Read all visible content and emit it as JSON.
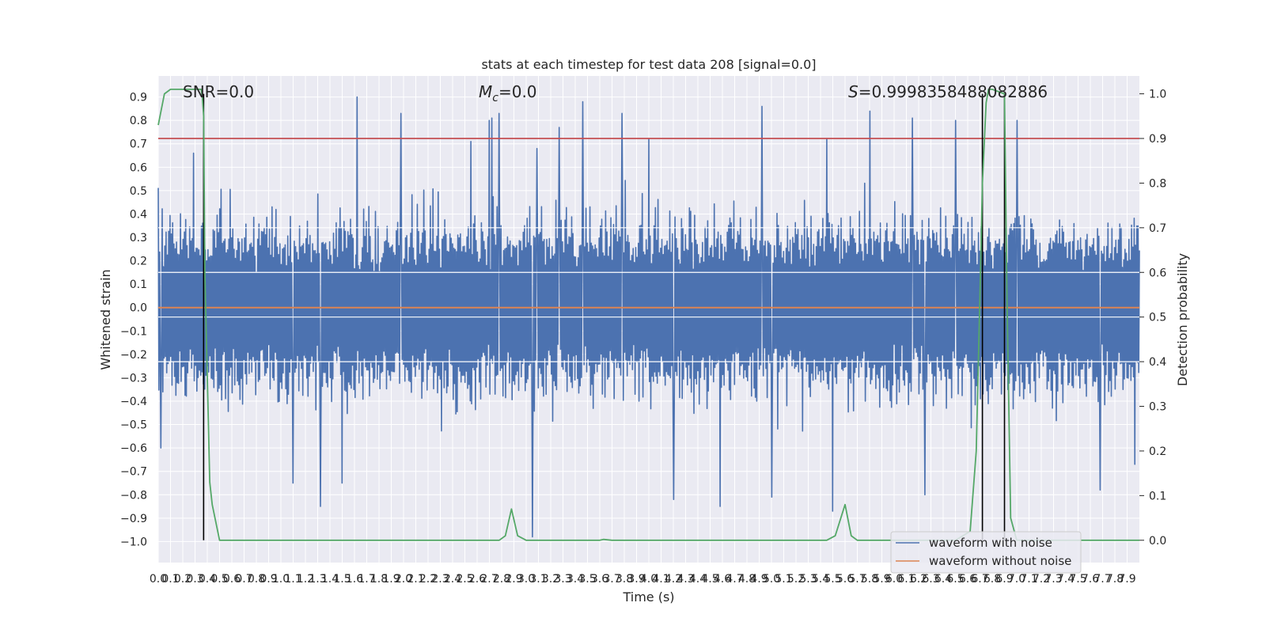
{
  "chart_data": {
    "type": "line",
    "title": "stats at each timestep for test data 208 [signal=0.0]",
    "xlabel": "Time (s)",
    "ylabel_left": "Whitened strain",
    "ylabel_right": "Detection probability",
    "xlim": [
      0,
      8
    ],
    "ylim_left": [
      -1.09,
      0.99
    ],
    "ylim_right": [
      -0.05,
      1.04
    ],
    "grid": true,
    "legend_position": "lower-right",
    "x_ticks": [
      "0.0",
      "0.1",
      "0.2",
      "0.3",
      "0.4",
      "0.5",
      "0.6",
      "0.7",
      "0.8",
      "0.9",
      "1.0",
      "1.1",
      "1.2",
      "1.3",
      "1.4",
      "1.5",
      "1.6",
      "1.7",
      "1.8",
      "1.9",
      "2.0",
      "2.1",
      "2.2",
      "2.3",
      "2.4",
      "2.5",
      "2.6",
      "2.7",
      "2.8",
      "2.9",
      "3.0",
      "3.1",
      "3.2",
      "3.3",
      "3.4",
      "3.5",
      "3.6",
      "3.7",
      "3.8",
      "3.9",
      "4.0",
      "4.1",
      "4.2",
      "4.3",
      "4.4",
      "4.5",
      "4.6",
      "4.7",
      "4.8",
      "4.9",
      "5.0",
      "5.1",
      "5.2",
      "5.3",
      "5.4",
      "5.5",
      "5.6",
      "5.7",
      "5.8",
      "5.9",
      "6.0",
      "6.1",
      "6.2",
      "6.3",
      "6.4",
      "6.5",
      "6.6",
      "6.7",
      "6.8",
      "6.9",
      "7.0",
      "7.1",
      "7.2",
      "7.3",
      "7.4",
      "7.5",
      "7.6",
      "7.7",
      "7.8",
      "7.9"
    ],
    "y_ticks_left": [
      "0.9",
      "0.8",
      "0.7",
      "0.6",
      "0.5",
      "0.4",
      "0.3",
      "0.2",
      "0.1",
      "0.0",
      "−0.1",
      "−0.2",
      "−0.3",
      "−0.4",
      "−0.5",
      "−0.6",
      "−0.7",
      "−0.8",
      "−0.9",
      "−1.0"
    ],
    "y_ticks_right": [
      "1.0",
      "0.9",
      "0.8",
      "0.7",
      "0.6",
      "0.5",
      "0.4",
      "0.3",
      "0.2",
      "0.1",
      "0.0"
    ],
    "annotations": {
      "snr": "SNR=0.0",
      "mc_symbol": "M",
      "mc_sub": "c",
      "mc_value": "=0.0",
      "s_symbol": "S",
      "s_value": "=0.9998358488082886"
    },
    "threshold": {
      "axis": "right",
      "value": 0.9,
      "color": "#c44e52"
    },
    "vertical_markers_x": [
      0.37,
      6.72,
      6.9
    ],
    "series": [
      {
        "name": "waveform with noise",
        "axis": "left",
        "color": "#4c72b0",
        "kind": "noise",
        "typical_amplitude": 0.45,
        "peaks": [
          {
            "x": 0.02,
            "y": -0.6
          },
          {
            "x": 0.29,
            "y": 0.66
          },
          {
            "x": 1.1,
            "y": -0.75
          },
          {
            "x": 1.32,
            "y": -0.85
          },
          {
            "x": 1.5,
            "y": -0.75
          },
          {
            "x": 1.62,
            "y": 0.9
          },
          {
            "x": 1.98,
            "y": 0.83
          },
          {
            "x": 2.55,
            "y": 0.71
          },
          {
            "x": 2.7,
            "y": 0.8
          },
          {
            "x": 2.72,
            "y": 0.81
          },
          {
            "x": 2.78,
            "y": 0.83
          },
          {
            "x": 3.05,
            "y": -0.98
          },
          {
            "x": 3.09,
            "y": 0.68
          },
          {
            "x": 3.27,
            "y": 0.77
          },
          {
            "x": 3.46,
            "y": 0.88
          },
          {
            "x": 3.78,
            "y": 0.83
          },
          {
            "x": 4.0,
            "y": 0.72
          },
          {
            "x": 4.2,
            "y": -0.82
          },
          {
            "x": 4.58,
            "y": -0.85
          },
          {
            "x": 4.92,
            "y": 0.86
          },
          {
            "x": 5.0,
            "y": -0.81
          },
          {
            "x": 5.45,
            "y": 0.72
          },
          {
            "x": 5.5,
            "y": -0.87
          },
          {
            "x": 5.8,
            "y": 0.84
          },
          {
            "x": 6.15,
            "y": 0.81
          },
          {
            "x": 6.25,
            "y": -0.8
          },
          {
            "x": 6.5,
            "y": 0.8
          },
          {
            "x": 7.0,
            "y": 0.8
          },
          {
            "x": 7.68,
            "y": -0.78
          },
          {
            "x": 7.96,
            "y": -0.67
          }
        ]
      },
      {
        "name": "waveform without noise",
        "axis": "left",
        "color": "#dd8452",
        "x": [
          0,
          8
        ],
        "y": [
          0.0,
          0.0
        ]
      },
      {
        "name": "detection probability",
        "axis": "right",
        "color": "#55a868",
        "x": [
          0.0,
          0.05,
          0.1,
          0.15,
          0.2,
          0.25,
          0.3,
          0.35,
          0.36,
          0.37,
          0.38,
          0.42,
          0.44,
          0.5,
          1.0,
          2.0,
          2.7,
          2.78,
          2.83,
          2.88,
          2.93,
          3.0,
          3.2,
          3.6,
          3.63,
          3.7,
          4.0,
          5.0,
          5.45,
          5.52,
          5.6,
          5.65,
          5.7,
          6.0,
          6.5,
          6.62,
          6.67,
          6.7,
          6.72,
          6.75,
          6.77,
          6.8,
          6.9,
          6.92,
          6.95,
          7.0,
          7.5,
          8.0
        ],
        "y": [
          0.93,
          1.0,
          1.01,
          1.01,
          1.01,
          1.01,
          1.01,
          1.01,
          0.99,
          0.95,
          0.6,
          0.13,
          0.08,
          0.0,
          0.0,
          0.0,
          0.0,
          0.0,
          0.01,
          0.07,
          0.01,
          0.0,
          0.0,
          0.0,
          0.002,
          0.0,
          0.0,
          0.0,
          0.0,
          0.01,
          0.08,
          0.01,
          0.0,
          0.0,
          0.0,
          0.02,
          0.2,
          0.55,
          0.8,
          0.98,
          1.01,
          1.01,
          1.0,
          0.55,
          0.05,
          0.0,
          0.0,
          0.0
        ]
      }
    ]
  }
}
